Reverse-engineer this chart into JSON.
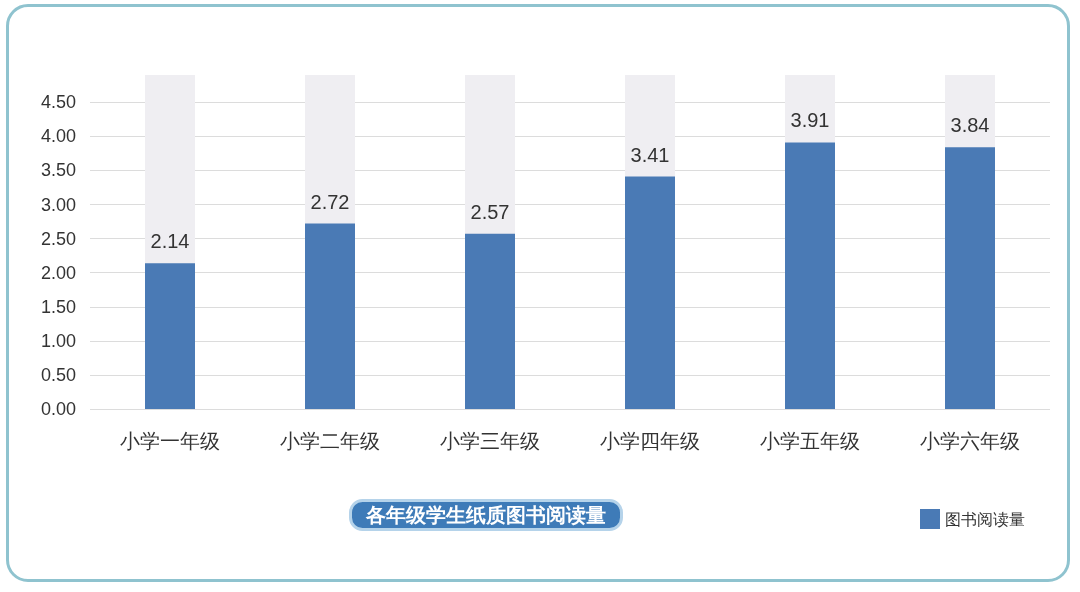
{
  "chart_data": {
    "type": "bar",
    "title": "各年级学生纸质图书阅读量",
    "categories": [
      "小学一年级",
      "小学二年级",
      "小学三年级",
      "小学四年级",
      "小学五年级",
      "小学六年级"
    ],
    "series": [
      {
        "name": "图书阅读量",
        "color": "#4a7ab5",
        "values": [
          2.14,
          2.72,
          2.57,
          3.41,
          3.91,
          3.84
        ]
      }
    ],
    "ylim": [
      0,
      4.9
    ],
    "yticks": [
      {
        "value": 0,
        "label": "0.00"
      },
      {
        "value": 0.5,
        "label": "0.50"
      },
      {
        "value": 1,
        "label": "1.00"
      },
      {
        "value": 1.5,
        "label": "1.50"
      },
      {
        "value": 2,
        "label": "2.00"
      },
      {
        "value": 2.5,
        "label": "2.50"
      },
      {
        "value": 3,
        "label": "3.00"
      },
      {
        "value": 3.5,
        "label": "3.50"
      },
      {
        "value": 4,
        "label": "4.00"
      },
      {
        "value": 4.5,
        "label": "4.50"
      }
    ],
    "grid": "y",
    "legend": "bottom right",
    "data_labels": true
  }
}
